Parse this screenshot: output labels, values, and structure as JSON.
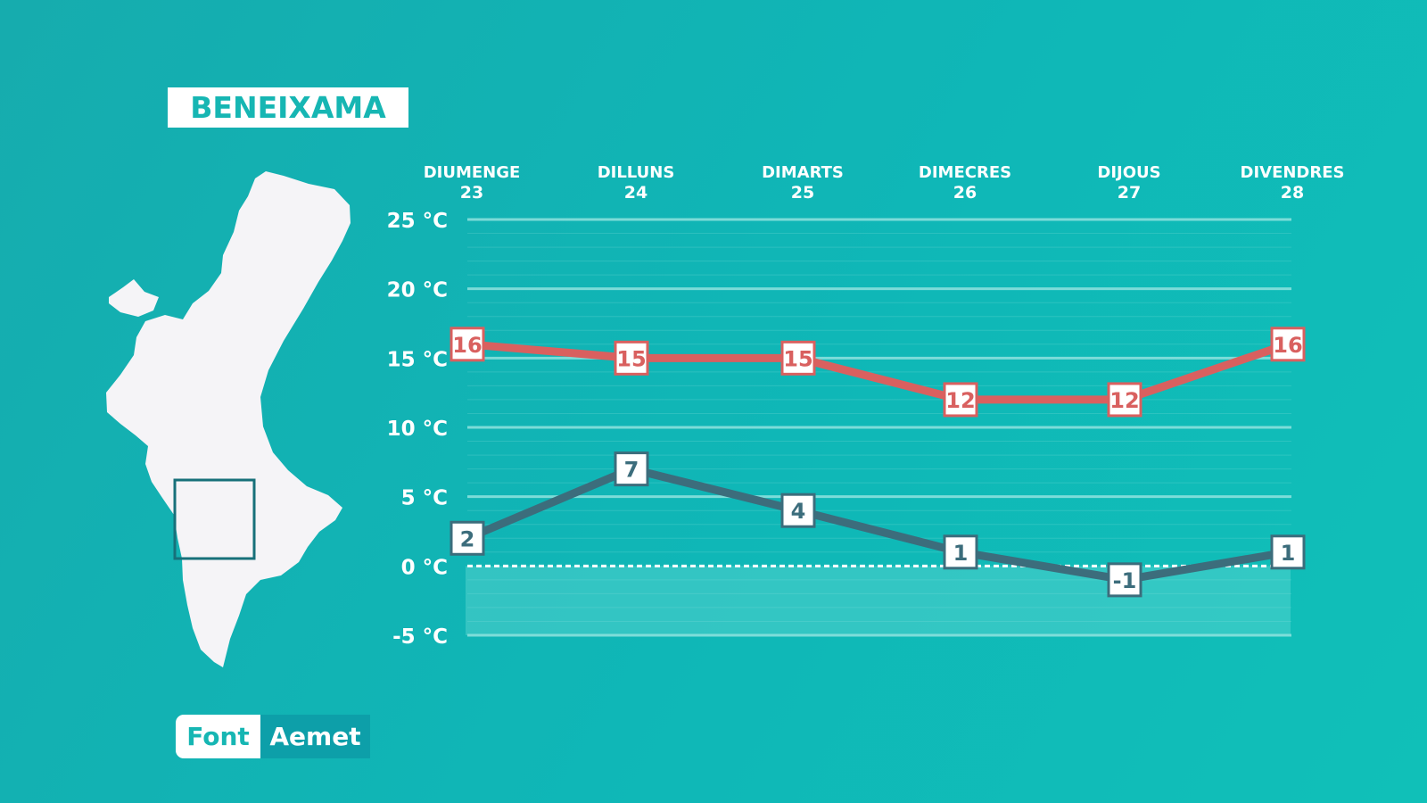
{
  "title": "BENEIXAMA",
  "source": {
    "label": "Font",
    "value": "Aemet"
  },
  "colors": {
    "background": "#13b3b3",
    "max_series": "#d9605f",
    "min_series": "#3c6d7c",
    "grid": "#8fe3df",
    "map": "#f5f4f7",
    "locator": "#17707a"
  },
  "map": {
    "icon": "valencia-region-map",
    "locator": "square-locator-marker"
  },
  "chart_data": {
    "type": "line",
    "categories": [
      {
        "day": "DIUMENGE",
        "date": "23"
      },
      {
        "day": "DILLUNS",
        "date": "24"
      },
      {
        "day": "DIMARTS",
        "date": "25"
      },
      {
        "day": "DIMECRES",
        "date": "26"
      },
      {
        "day": "DIJOUS",
        "date": "27"
      },
      {
        "day": "DIVENDRES",
        "date": "28"
      }
    ],
    "y_ticks": [
      {
        "value": 25,
        "label": "25 °C"
      },
      {
        "value": 20,
        "label": "20 °C"
      },
      {
        "value": 15,
        "label": "15 °C"
      },
      {
        "value": 10,
        "label": "10 °C"
      },
      {
        "value": 5,
        "label": "5 °C"
      },
      {
        "value": 0,
        "label": "0 °C"
      },
      {
        "value": -5,
        "label": "-5 °C"
      }
    ],
    "ylim": [
      -5,
      25
    ],
    "grid": true,
    "series": [
      {
        "key": "max",
        "values": [
          16,
          15,
          15,
          12,
          12,
          16
        ]
      },
      {
        "key": "min",
        "values": [
          2,
          7,
          4,
          1,
          -1,
          1
        ]
      }
    ]
  }
}
